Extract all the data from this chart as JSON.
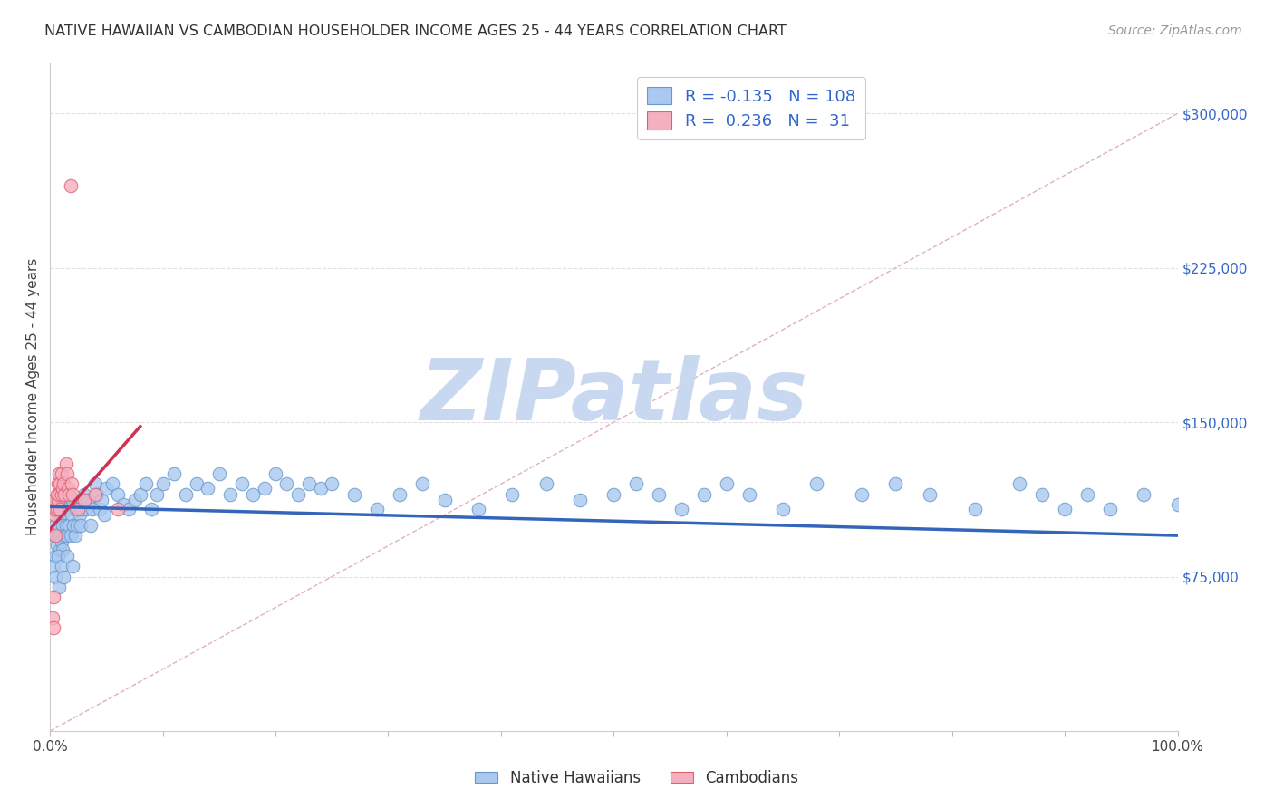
{
  "title": "NATIVE HAWAIIAN VS CAMBODIAN HOUSEHOLDER INCOME AGES 25 - 44 YEARS CORRELATION CHART",
  "source": "Source: ZipAtlas.com",
  "ylabel": "Householder Income Ages 25 - 44 years",
  "xlim": [
    0.0,
    1.0
  ],
  "ylim": [
    0,
    325000
  ],
  "ytick_vals": [
    0,
    75000,
    150000,
    225000,
    300000
  ],
  "ytick_labels_right": [
    "",
    "$75,000",
    "$150,000",
    "$225,000",
    "$300,000"
  ],
  "xtick_vals": [
    0.0,
    0.1,
    0.2,
    0.3,
    0.4,
    0.5,
    0.6,
    0.7,
    0.8,
    0.9,
    1.0
  ],
  "xtick_labels": [
    "0.0%",
    "",
    "",
    "",
    "",
    "",
    "",
    "",
    "",
    "",
    "100.0%"
  ],
  "blue_face": "#aac8f0",
  "blue_edge": "#6699cc",
  "pink_face": "#f5b0c0",
  "pink_edge": "#e06070",
  "trend_blue": "#3366bb",
  "trend_pink": "#cc3355",
  "ref_color": "#e0b0c0",
  "ref_style": "--",
  "legend_color": "#3366cc",
  "legend_N_color": "#ff3333",
  "watermark": "ZIPatlas",
  "watermark_color": "#c8d8f0",
  "blue_R": -0.135,
  "blue_N": 108,
  "pink_R": 0.236,
  "pink_N": 31,
  "blue_trend_x": [
    0.0,
    1.0
  ],
  "blue_trend_y": [
    109000,
    95000
  ],
  "pink_trend_x": [
    0.0,
    0.08
  ],
  "pink_trend_y": [
    98000,
    148000
  ],
  "bottom_legend": [
    "Native Hawaiians",
    "Cambodians"
  ],
  "nh_x": [
    0.003,
    0.004,
    0.005,
    0.005,
    0.006,
    0.006,
    0.007,
    0.007,
    0.008,
    0.008,
    0.009,
    0.009,
    0.01,
    0.01,
    0.011,
    0.011,
    0.012,
    0.013,
    0.014,
    0.015,
    0.015,
    0.016,
    0.017,
    0.018,
    0.019,
    0.02,
    0.021,
    0.022,
    0.023,
    0.024,
    0.025,
    0.026,
    0.027,
    0.028,
    0.029,
    0.03,
    0.032,
    0.034,
    0.036,
    0.038,
    0.04,
    0.042,
    0.044,
    0.046,
    0.048,
    0.05,
    0.055,
    0.06,
    0.065,
    0.07,
    0.075,
    0.08,
    0.085,
    0.09,
    0.095,
    0.1,
    0.11,
    0.12,
    0.13,
    0.14,
    0.15,
    0.16,
    0.17,
    0.18,
    0.19,
    0.2,
    0.21,
    0.22,
    0.23,
    0.24,
    0.25,
    0.27,
    0.29,
    0.31,
    0.33,
    0.35,
    0.38,
    0.41,
    0.44,
    0.47,
    0.5,
    0.52,
    0.54,
    0.56,
    0.58,
    0.6,
    0.62,
    0.65,
    0.68,
    0.72,
    0.75,
    0.78,
    0.82,
    0.86,
    0.88,
    0.9,
    0.92,
    0.94,
    0.97,
    1.0,
    0.003,
    0.005,
    0.007,
    0.008,
    0.01,
    0.012,
    0.015,
    0.02
  ],
  "nh_y": [
    108000,
    95000,
    100000,
    85000,
    110000,
    90000,
    105000,
    95000,
    100000,
    112000,
    95000,
    88000,
    105000,
    92000,
    100000,
    88000,
    108000,
    95000,
    100000,
    110000,
    95000,
    108000,
    100000,
    95000,
    105000,
    112000,
    100000,
    95000,
    108000,
    100000,
    112000,
    105000,
    100000,
    108000,
    112000,
    115000,
    108000,
    112000,
    100000,
    108000,
    120000,
    115000,
    108000,
    112000,
    105000,
    118000,
    120000,
    115000,
    110000,
    108000,
    112000,
    115000,
    120000,
    108000,
    115000,
    120000,
    125000,
    115000,
    120000,
    118000,
    125000,
    115000,
    120000,
    115000,
    118000,
    125000,
    120000,
    115000,
    120000,
    118000,
    120000,
    115000,
    108000,
    115000,
    120000,
    112000,
    108000,
    115000,
    120000,
    112000,
    115000,
    120000,
    115000,
    108000,
    115000,
    120000,
    115000,
    108000,
    120000,
    115000,
    120000,
    115000,
    108000,
    120000,
    115000,
    108000,
    115000,
    108000,
    115000,
    110000,
    80000,
    75000,
    85000,
    70000,
    80000,
    75000,
    85000,
    80000
  ],
  "cam_x": [
    0.002,
    0.003,
    0.003,
    0.004,
    0.004,
    0.005,
    0.005,
    0.006,
    0.006,
    0.007,
    0.007,
    0.008,
    0.008,
    0.009,
    0.009,
    0.01,
    0.01,
    0.011,
    0.012,
    0.013,
    0.014,
    0.015,
    0.016,
    0.017,
    0.018,
    0.019,
    0.02,
    0.025,
    0.03,
    0.04,
    0.06
  ],
  "cam_y": [
    55000,
    65000,
    50000,
    105000,
    112000,
    108000,
    95000,
    115000,
    108000,
    120000,
    112000,
    125000,
    115000,
    120000,
    108000,
    115000,
    125000,
    118000,
    120000,
    115000,
    130000,
    125000,
    118000,
    115000,
    265000,
    120000,
    115000,
    108000,
    112000,
    115000,
    108000
  ]
}
